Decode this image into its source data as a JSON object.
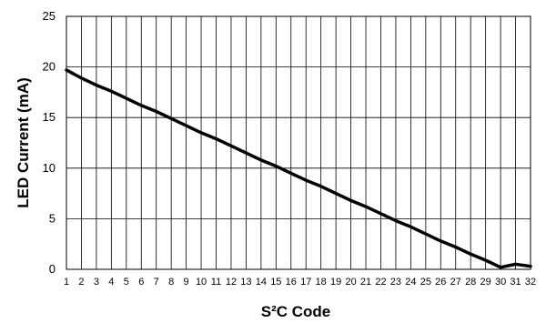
{
  "chart_data": {
    "type": "line",
    "xlabel": "S²C Code",
    "ylabel": "LED Current (mA)",
    "xlim": [
      1,
      32
    ],
    "ylim": [
      0,
      25
    ],
    "x_ticks": [
      1,
      2,
      3,
      4,
      5,
      6,
      7,
      8,
      9,
      10,
      11,
      12,
      13,
      14,
      15,
      16,
      17,
      18,
      19,
      20,
      21,
      22,
      23,
      24,
      25,
      26,
      27,
      28,
      29,
      30,
      31,
      32
    ],
    "y_ticks": [
      0,
      5,
      10,
      15,
      20,
      25
    ],
    "grid": true,
    "series": [
      {
        "color": "#000000",
        "x": [
          1,
          2,
          3,
          4,
          5,
          6,
          7,
          8,
          9,
          10,
          11,
          12,
          13,
          14,
          15,
          16,
          17,
          18,
          19,
          20,
          21,
          22,
          23,
          24,
          25,
          26,
          27,
          28,
          29,
          30,
          31,
          32
        ],
        "y": [
          19.7,
          18.9,
          18.2,
          17.6,
          16.9,
          16.2,
          15.6,
          14.9,
          14.2,
          13.5,
          12.9,
          12.2,
          11.5,
          10.8,
          10.2,
          9.5,
          8.8,
          8.2,
          7.5,
          6.8,
          6.2,
          5.5,
          4.8,
          4.2,
          3.5,
          2.8,
          2.2,
          1.5,
          0.9,
          0.2,
          0.5,
          0.3
        ]
      }
    ]
  }
}
